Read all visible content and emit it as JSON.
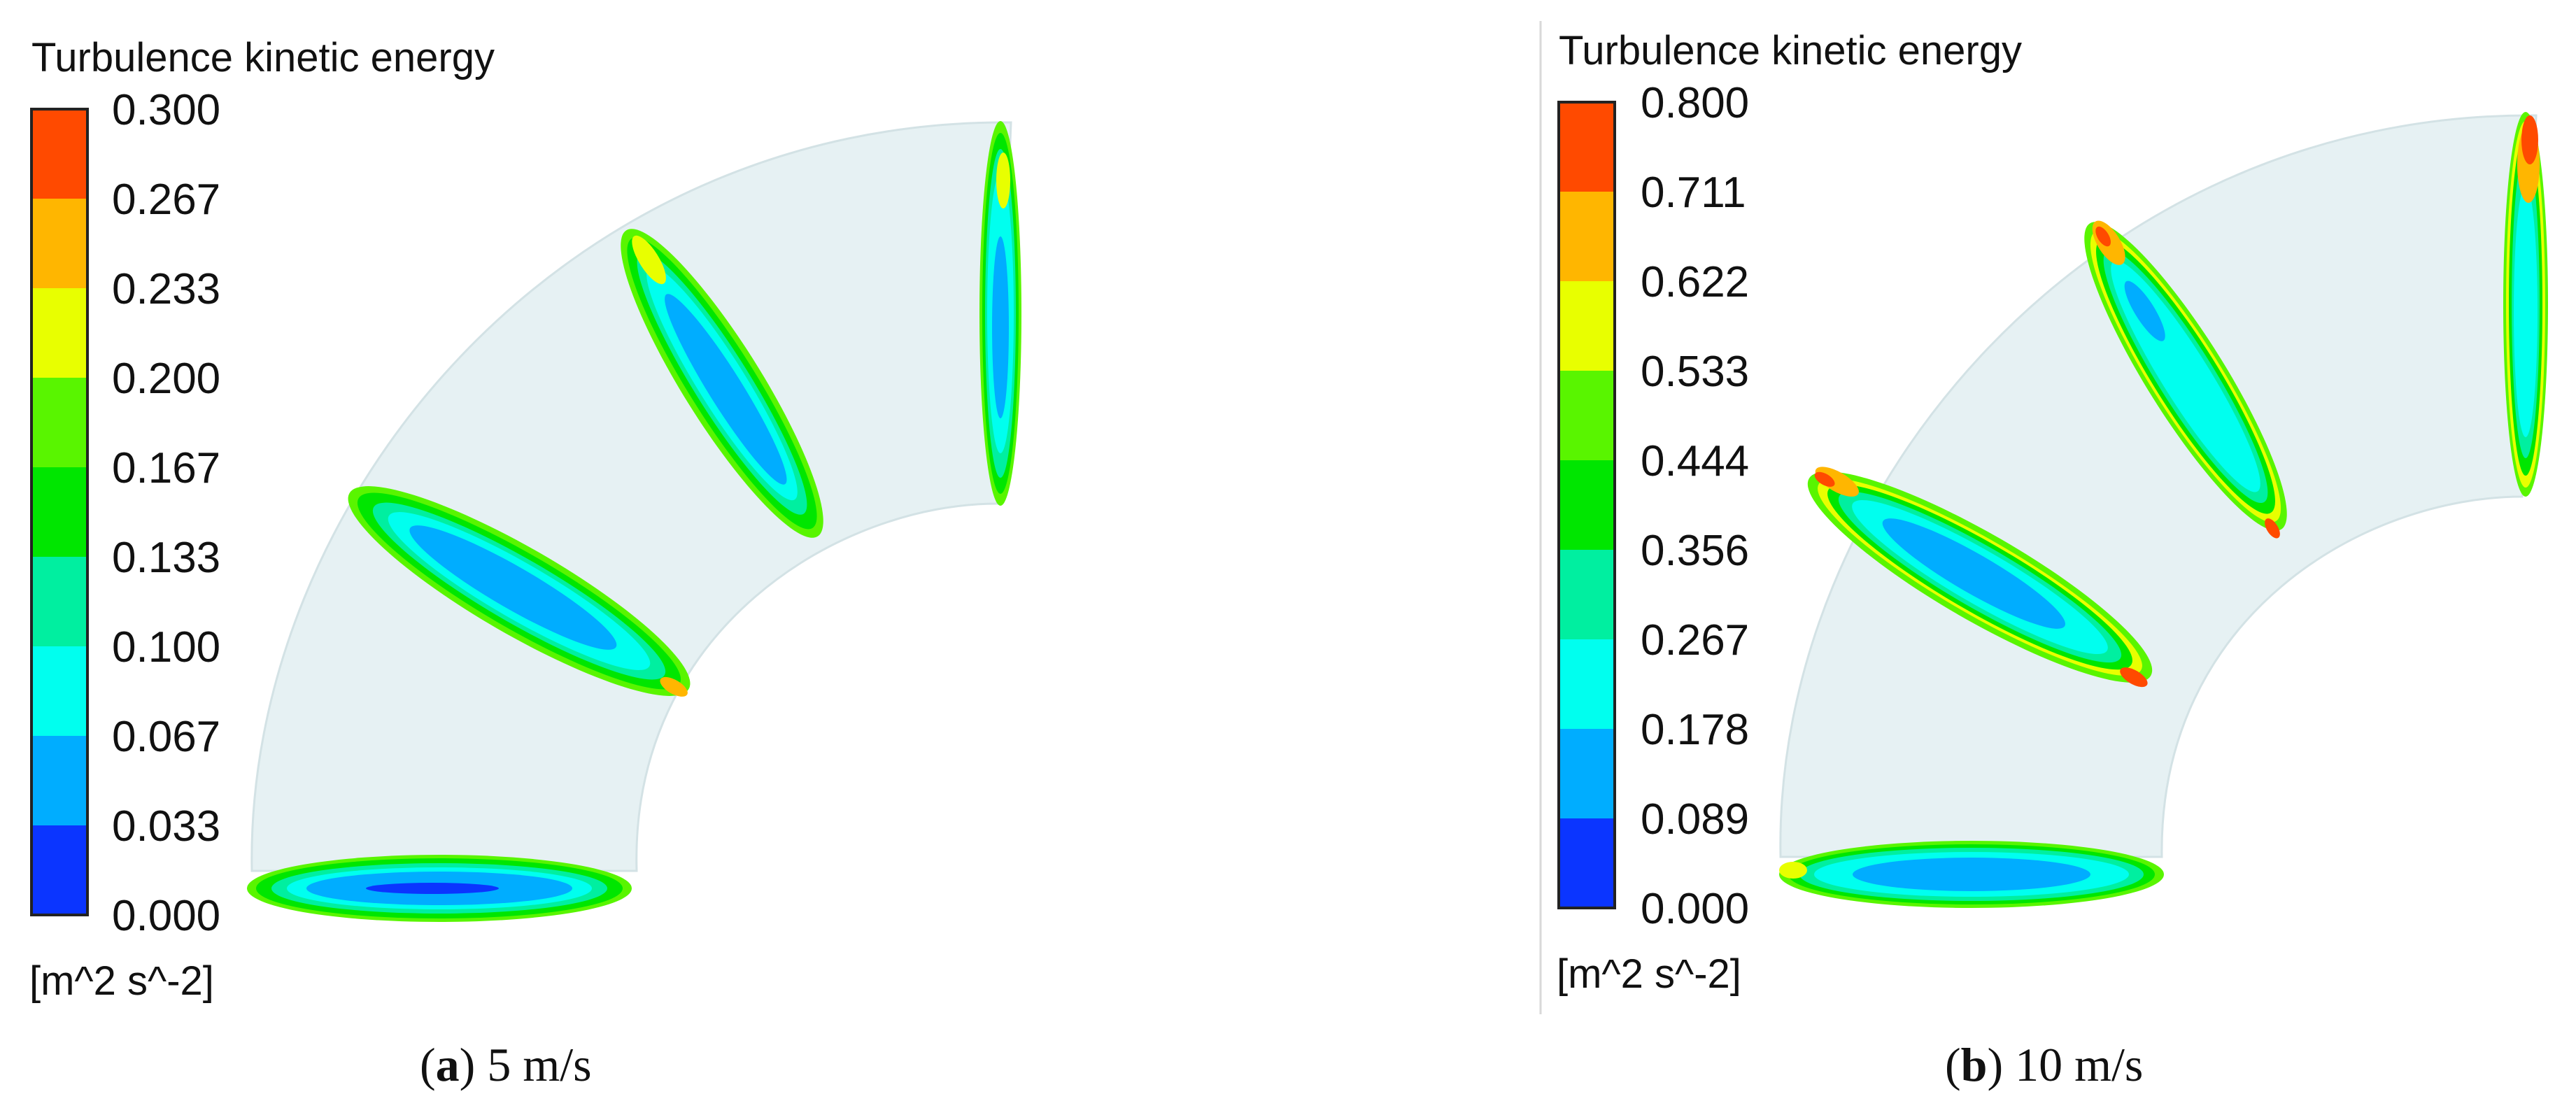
{
  "colormap": [
    "#0b35ff",
    "#00adff",
    "#00ffef",
    "#00efa0",
    "#00e600",
    "#59f500",
    "#e8ff00",
    "#ffb600",
    "#ff4a00"
  ],
  "pipe_color": "#e6f1f3",
  "panels": [
    {
      "legend_title": "Turbulence kinetic energy",
      "unit": "[m^2 s^-2]",
      "ticks": [
        "0.300",
        "0.267",
        "0.233",
        "0.200",
        "0.167",
        "0.133",
        "0.100",
        "0.067",
        "0.033",
        "0.000"
      ],
      "caption_letter": "a",
      "caption_text": " 5 m/s"
    },
    {
      "legend_title": "Turbulence kinetic energy",
      "unit": "[m^2 s^-2]",
      "ticks": [
        "0.800",
        "0.711",
        "0.622",
        "0.533",
        "0.444",
        "0.356",
        "0.267",
        "0.178",
        "0.089",
        "0.000"
      ],
      "caption_letter": "b",
      "caption_text": " 10 m/s"
    }
  ]
}
